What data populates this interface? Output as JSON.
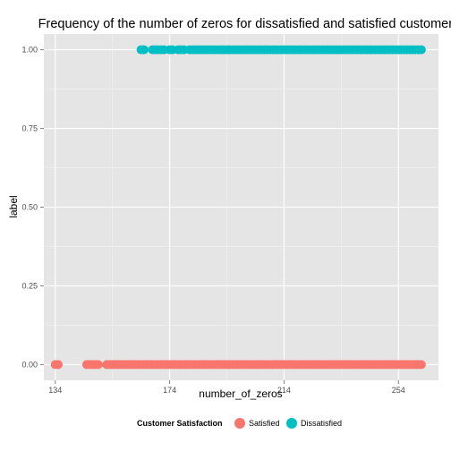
{
  "chart_data": {
    "type": "scatter",
    "title": "Frequency of the number of zeros for dissatisfied and satisfied customers",
    "xlabel": "number_of_zeros",
    "ylabel": "label",
    "xlim": [
      130,
      268
    ],
    "ylim": [
      -0.05,
      1.05
    ],
    "x_ticks": [
      134,
      174,
      214,
      254
    ],
    "x_tick_labels": [
      "134",
      "174",
      "214",
      "254"
    ],
    "y_ticks": [
      0,
      0.25,
      0.5,
      0.75,
      1.0
    ],
    "y_tick_labels": [
      "0.00",
      "0.25",
      "0.50",
      "0.75",
      "1.00"
    ],
    "grid": true,
    "legend": {
      "position": "bottom",
      "title": "Customer Satisfaction",
      "entries": [
        "Satisfied",
        "Dissatisfied"
      ]
    },
    "series": [
      {
        "name": "Satisfied",
        "label_value": 0,
        "color": "#F8766D",
        "x": [
          134,
          135,
          145,
          146,
          147,
          148,
          149,
          152,
          153,
          154,
          155,
          156,
          157,
          158,
          159,
          160,
          161,
          162,
          163,
          164,
          165,
          166,
          167,
          168,
          169,
          170,
          171,
          172,
          173,
          174,
          175,
          176,
          177,
          178,
          179,
          180,
          181,
          182,
          183,
          184,
          185,
          186,
          187,
          188,
          189,
          190,
          191,
          192,
          193,
          194,
          195,
          196,
          197,
          198,
          199,
          200,
          201,
          202,
          203,
          204,
          205,
          206,
          207,
          208,
          209,
          210,
          211,
          212,
          213,
          214,
          215,
          216,
          217,
          218,
          219,
          220,
          221,
          222,
          223,
          224,
          225,
          226,
          227,
          228,
          229,
          230,
          231,
          232,
          233,
          234,
          235,
          236,
          237,
          238,
          239,
          240,
          241,
          242,
          243,
          244,
          245,
          246,
          247,
          248,
          249,
          250,
          251,
          252,
          253,
          254,
          255,
          256,
          257,
          258,
          259,
          260,
          261,
          262
        ]
      },
      {
        "name": "Dissatisfied",
        "label_value": 1,
        "color": "#00BFC4",
        "x": [
          164,
          165,
          168,
          169,
          170,
          171,
          172,
          174,
          175,
          177,
          178,
          179,
          181,
          182,
          183,
          184,
          185,
          186,
          187,
          188,
          189,
          190,
          191,
          192,
          193,
          194,
          195,
          196,
          197,
          198,
          199,
          200,
          201,
          202,
          203,
          204,
          205,
          206,
          207,
          208,
          209,
          210,
          211,
          212,
          213,
          214,
          215,
          216,
          217,
          218,
          219,
          220,
          221,
          222,
          223,
          224,
          225,
          226,
          227,
          228,
          229,
          230,
          231,
          232,
          233,
          234,
          235,
          236,
          237,
          238,
          239,
          240,
          241,
          242,
          243,
          244,
          245,
          246,
          247,
          248,
          249,
          250,
          251,
          252,
          253,
          254,
          255,
          256,
          257,
          258,
          259,
          260,
          261,
          262
        ]
      }
    ]
  }
}
